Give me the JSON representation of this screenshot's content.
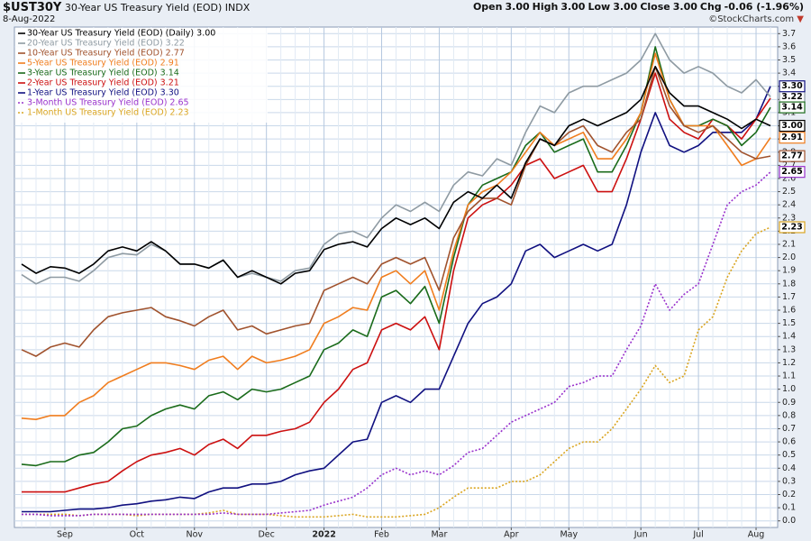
{
  "chart_data": {
    "type": "line",
    "title": "$UST30Y",
    "subtitle": "30-Year US Treasury Yield (EOD)",
    "exchange": "INDX",
    "date": "8-Aug-2022",
    "quote": [
      {
        "label": "Open",
        "value": "3.00"
      },
      {
        "label": "High",
        "value": "3.00"
      },
      {
        "label": "Low",
        "value": "3.00"
      },
      {
        "label": "Close",
        "value": "3.00"
      },
      {
        "label": "Chg",
        "value": "-0.06 (-1.96%)"
      }
    ],
    "change_marker": "▼",
    "credit": "©StockCharts.com",
    "categories": [
      null,
      null,
      null,
      "Sep",
      null,
      null,
      null,
      null,
      "Oct",
      null,
      null,
      null,
      "Nov",
      null,
      null,
      null,
      null,
      "Dec",
      null,
      null,
      null,
      "2022",
      null,
      null,
      null,
      "Feb",
      null,
      null,
      null,
      "Mar",
      null,
      null,
      null,
      null,
      "Apr",
      null,
      null,
      null,
      "May",
      null,
      null,
      null,
      null,
      "Jun",
      null,
      null,
      null,
      "Jul",
      null,
      null,
      null,
      "Aug",
      null
    ],
    "ylim": [
      -0.05,
      3.75
    ],
    "yticks": [
      {
        "value": 0,
        "label": "0.0"
      },
      0.1,
      0.2,
      0.3,
      0.4,
      0.5,
      0.6,
      0.7,
      0.8,
      0.9,
      {
        "value": 1,
        "label": "1.0"
      },
      1.1,
      1.2,
      1.3,
      1.4,
      1.5,
      1.6,
      1.7,
      1.8,
      1.9,
      {
        "value": 2,
        "label": "2.0"
      },
      2.1,
      2.2,
      2.3,
      2.4,
      2.5,
      2.6,
      2.7,
      2.8,
      2.9,
      {
        "value": 3,
        "label": "3.0"
      },
      3.1,
      3.2,
      3.3,
      3.4,
      3.5,
      3.6,
      3.7
    ],
    "grid": true,
    "legend": "top-left",
    "series": [
      {
        "name": "30-Year US Treasury Yield (EOD) (Daily) 3.00",
        "color": "#000000",
        "style": "solid",
        "values": [
          1.95,
          1.88,
          1.93,
          1.92,
          1.88,
          1.95,
          2.05,
          2.08,
          2.05,
          2.12,
          2.05,
          1.95,
          1.95,
          1.92,
          1.98,
          1.85,
          1.9,
          1.85,
          1.8,
          1.88,
          1.9,
          2.06,
          2.1,
          2.12,
          2.08,
          2.22,
          2.3,
          2.25,
          2.3,
          2.22,
          2.42,
          2.5,
          2.45,
          2.55,
          2.45,
          2.72,
          2.9,
          2.85,
          3.0,
          3.05,
          3.0,
          3.05,
          3.1,
          3.2,
          3.45,
          3.25,
          3.15,
          3.15,
          3.1,
          3.05,
          2.98,
          3.05,
          3.0
        ],
        "value_labels": [
          null,
          null,
          null,
          null,
          null,
          null,
          null,
          null,
          null,
          null,
          null,
          null,
          null,
          null,
          null,
          null,
          null,
          null,
          null,
          null,
          null,
          null,
          null,
          null,
          null,
          null,
          null,
          null,
          null,
          null,
          null,
          null,
          null,
          null,
          null,
          null,
          null,
          null,
          null,
          null,
          null,
          null,
          null,
          null,
          null,
          null,
          null,
          null,
          null,
          null,
          null,
          null,
          "3.00"
        ]
      },
      {
        "name": "20-Year US Treasury Yield (EOD) 3.22",
        "color": "#8e9aa2",
        "style": "solid",
        "values": [
          1.87,
          1.8,
          1.85,
          1.85,
          1.82,
          1.9,
          2.0,
          2.03,
          2.02,
          2.1,
          2.05,
          1.95,
          1.95,
          1.92,
          1.98,
          1.85,
          1.88,
          1.85,
          1.82,
          1.9,
          1.92,
          2.1,
          2.18,
          2.2,
          2.15,
          2.3,
          2.4,
          2.35,
          2.42,
          2.35,
          2.55,
          2.65,
          2.62,
          2.75,
          2.7,
          2.95,
          3.15,
          3.1,
          3.25,
          3.3,
          3.3,
          3.35,
          3.4,
          3.5,
          3.7,
          3.5,
          3.4,
          3.45,
          3.4,
          3.3,
          3.25,
          3.35,
          3.22
        ],
        "value_labels": [
          null,
          null,
          null,
          null,
          null,
          null,
          null,
          null,
          null,
          null,
          null,
          null,
          null,
          null,
          null,
          null,
          null,
          null,
          null,
          null,
          null,
          null,
          null,
          null,
          null,
          null,
          null,
          null,
          null,
          null,
          null,
          null,
          null,
          null,
          null,
          null,
          null,
          null,
          null,
          null,
          null,
          null,
          null,
          null,
          null,
          null,
          null,
          null,
          null,
          null,
          null,
          null,
          "3.22"
        ]
      },
      {
        "name": "10-Year US Treasury Yield (EOD) 2.77",
        "color": "#a0522d",
        "style": "solid",
        "values": [
          1.3,
          1.25,
          1.32,
          1.35,
          1.32,
          1.45,
          1.55,
          1.58,
          1.6,
          1.62,
          1.55,
          1.52,
          1.48,
          1.55,
          1.6,
          1.45,
          1.48,
          1.42,
          1.45,
          1.48,
          1.5,
          1.75,
          1.8,
          1.85,
          1.8,
          1.95,
          2.0,
          1.95,
          2.0,
          1.75,
          2.15,
          2.35,
          2.45,
          2.45,
          2.4,
          2.7,
          2.9,
          2.85,
          2.95,
          3.0,
          2.85,
          2.8,
          2.95,
          3.05,
          3.45,
          3.15,
          3.0,
          2.95,
          3.0,
          2.9,
          2.8,
          2.75,
          2.77
        ],
        "value_labels": [
          null,
          null,
          null,
          null,
          null,
          null,
          null,
          null,
          null,
          null,
          null,
          null,
          null,
          null,
          null,
          null,
          null,
          null,
          null,
          null,
          null,
          null,
          null,
          null,
          null,
          null,
          null,
          null,
          null,
          null,
          null,
          null,
          null,
          null,
          null,
          null,
          null,
          null,
          null,
          null,
          null,
          null,
          null,
          null,
          null,
          null,
          null,
          null,
          null,
          null,
          null,
          null,
          "2.77"
        ]
      },
      {
        "name": "5-Year US Treasury Yield (EOD) 2.91",
        "color": "#f07d1e",
        "style": "solid",
        "values": [
          0.78,
          0.77,
          0.8,
          0.8,
          0.9,
          0.95,
          1.05,
          1.1,
          1.15,
          1.2,
          1.2,
          1.18,
          1.15,
          1.22,
          1.25,
          1.15,
          1.25,
          1.2,
          1.22,
          1.25,
          1.3,
          1.5,
          1.55,
          1.62,
          1.6,
          1.85,
          1.9,
          1.8,
          1.9,
          1.6,
          2.05,
          2.4,
          2.5,
          2.55,
          2.65,
          2.8,
          2.95,
          2.85,
          2.9,
          2.95,
          2.75,
          2.75,
          2.9,
          3.1,
          3.55,
          3.2,
          3.0,
          3.0,
          3.0,
          2.85,
          2.7,
          2.75,
          2.91
        ],
        "value_labels": [
          null,
          null,
          null,
          null,
          null,
          null,
          null,
          null,
          null,
          null,
          null,
          null,
          null,
          null,
          null,
          null,
          null,
          null,
          null,
          null,
          null,
          null,
          null,
          null,
          null,
          null,
          null,
          null,
          null,
          null,
          null,
          null,
          null,
          null,
          null,
          null,
          null,
          null,
          null,
          null,
          null,
          null,
          null,
          null,
          null,
          null,
          null,
          null,
          null,
          null,
          null,
          null,
          "2.91"
        ]
      },
      {
        "name": "3-Year US Treasury Yield (EOD) 3.14",
        "color": "#1a6b1a",
        "style": "solid",
        "values": [
          0.43,
          0.42,
          0.45,
          0.45,
          0.5,
          0.52,
          0.6,
          0.7,
          0.72,
          0.8,
          0.85,
          0.88,
          0.85,
          0.95,
          0.98,
          0.92,
          1.0,
          0.98,
          1.0,
          1.05,
          1.1,
          1.3,
          1.35,
          1.45,
          1.4,
          1.7,
          1.75,
          1.65,
          1.78,
          1.5,
          2.0,
          2.4,
          2.55,
          2.6,
          2.65,
          2.85,
          2.95,
          2.8,
          2.85,
          2.9,
          2.65,
          2.65,
          2.85,
          3.1,
          3.6,
          3.2,
          3.0,
          3.0,
          3.05,
          3.0,
          2.85,
          2.95,
          3.14
        ],
        "value_labels": [
          null,
          null,
          null,
          null,
          null,
          null,
          null,
          null,
          null,
          null,
          null,
          null,
          null,
          null,
          null,
          null,
          null,
          null,
          null,
          null,
          null,
          null,
          null,
          null,
          null,
          null,
          null,
          null,
          null,
          null,
          null,
          null,
          null,
          null,
          null,
          null,
          null,
          null,
          null,
          null,
          null,
          null,
          null,
          null,
          null,
          null,
          null,
          null,
          null,
          null,
          null,
          null,
          "3.14"
        ]
      },
      {
        "name": "2-Year US Treasury Yield (EOD) 3.21",
        "color": "#cc1010",
        "style": "solid",
        "values": [
          0.22,
          0.22,
          0.22,
          0.22,
          0.25,
          0.28,
          0.3,
          0.38,
          0.45,
          0.5,
          0.52,
          0.55,
          0.5,
          0.58,
          0.62,
          0.55,
          0.65,
          0.65,
          0.68,
          0.7,
          0.75,
          0.9,
          1.0,
          1.15,
          1.2,
          1.45,
          1.5,
          1.45,
          1.55,
          1.3,
          1.9,
          2.3,
          2.4,
          2.45,
          2.55,
          2.7,
          2.75,
          2.6,
          2.65,
          2.7,
          2.5,
          2.5,
          2.75,
          3.05,
          3.4,
          3.05,
          2.95,
          2.9,
          3.05,
          3.0,
          2.9,
          3.05,
          3.21
        ]
      },
      {
        "name": "1-Year US Treasury Yield (EOD) 3.30",
        "color": "#101080",
        "style": "solid",
        "values": [
          0.07,
          0.07,
          0.07,
          0.08,
          0.09,
          0.09,
          0.1,
          0.12,
          0.13,
          0.15,
          0.16,
          0.18,
          0.17,
          0.22,
          0.25,
          0.25,
          0.28,
          0.28,
          0.3,
          0.35,
          0.38,
          0.4,
          0.5,
          0.6,
          0.62,
          0.9,
          0.95,
          0.9,
          1.0,
          1.0,
          1.25,
          1.5,
          1.65,
          1.7,
          1.8,
          2.05,
          2.1,
          2.0,
          2.05,
          2.1,
          2.05,
          2.1,
          2.4,
          2.8,
          3.1,
          2.85,
          2.8,
          2.85,
          2.95,
          2.95,
          2.95,
          3.05,
          3.3
        ],
        "value_labels": [
          null,
          null,
          null,
          null,
          null,
          null,
          null,
          null,
          null,
          null,
          null,
          null,
          null,
          null,
          null,
          null,
          null,
          null,
          null,
          null,
          null,
          null,
          null,
          null,
          null,
          null,
          null,
          null,
          null,
          null,
          null,
          null,
          null,
          null,
          null,
          null,
          null,
          null,
          null,
          null,
          null,
          null,
          null,
          null,
          null,
          null,
          null,
          null,
          null,
          null,
          null,
          null,
          "3.30"
        ]
      },
      {
        "name": "3-Month US Treasury Yield (EOD) 2.65",
        "color": "#9932cc",
        "style": "dotted",
        "values": [
          0.05,
          0.05,
          0.04,
          0.04,
          0.04,
          0.05,
          0.05,
          0.05,
          0.05,
          0.05,
          0.05,
          0.05,
          0.05,
          0.05,
          0.06,
          0.05,
          0.05,
          0.05,
          0.06,
          0.07,
          0.08,
          0.12,
          0.15,
          0.18,
          0.25,
          0.35,
          0.4,
          0.35,
          0.38,
          0.35,
          0.42,
          0.52,
          0.55,
          0.65,
          0.75,
          0.8,
          0.85,
          0.9,
          1.02,
          1.05,
          1.1,
          1.1,
          1.3,
          1.48,
          1.8,
          1.6,
          1.72,
          1.8,
          2.1,
          2.4,
          2.5,
          2.55,
          2.65
        ],
        "value_labels": [
          null,
          null,
          null,
          null,
          null,
          null,
          null,
          null,
          null,
          null,
          null,
          null,
          null,
          null,
          null,
          null,
          null,
          null,
          null,
          null,
          null,
          null,
          null,
          null,
          null,
          null,
          null,
          null,
          null,
          null,
          null,
          null,
          null,
          null,
          null,
          null,
          null,
          null,
          null,
          null,
          null,
          null,
          null,
          null,
          null,
          null,
          null,
          null,
          null,
          null,
          null,
          null,
          "2.65"
        ]
      },
      {
        "name": "1-Month US Treasury Yield (EOD) 2.23",
        "color": "#daa520",
        "style": "dotted",
        "values": [
          0.05,
          0.05,
          0.05,
          0.05,
          0.04,
          0.05,
          0.05,
          0.05,
          0.04,
          0.05,
          0.05,
          0.05,
          0.05,
          0.06,
          0.08,
          0.05,
          0.05,
          0.05,
          0.04,
          0.03,
          0.03,
          0.03,
          0.04,
          0.05,
          0.03,
          0.03,
          0.03,
          0.04,
          0.05,
          0.1,
          0.18,
          0.25,
          0.25,
          0.25,
          0.3,
          0.3,
          0.35,
          0.45,
          0.55,
          0.6,
          0.6,
          0.7,
          0.85,
          1.0,
          1.18,
          1.05,
          1.1,
          1.45,
          1.55,
          1.85,
          2.05,
          2.18,
          2.23
        ],
        "value_labels": [
          null,
          null,
          null,
          null,
          null,
          null,
          null,
          null,
          null,
          null,
          null,
          null,
          null,
          null,
          null,
          null,
          null,
          null,
          null,
          null,
          null,
          null,
          null,
          null,
          null,
          null,
          null,
          null,
          null,
          null,
          null,
          null,
          null,
          null,
          null,
          null,
          null,
          null,
          null,
          null,
          null,
          null,
          null,
          null,
          null,
          null,
          null,
          null,
          null,
          null,
          null,
          null,
          "2.23"
        ]
      }
    ]
  }
}
